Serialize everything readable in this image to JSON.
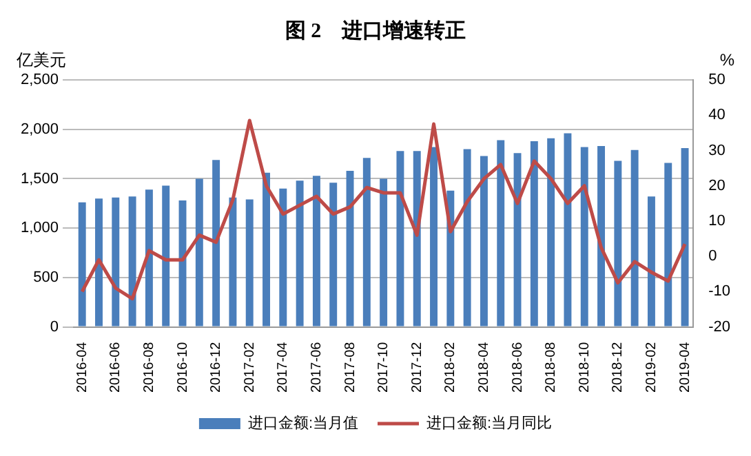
{
  "chart_data": {
    "type": "bar",
    "title": "图 2　进口增速转正",
    "ylabel": "亿美元",
    "y2label": "%",
    "categories": [
      "2016-04",
      null,
      "2016-06",
      null,
      "2016-08",
      null,
      "2016-10",
      null,
      "2016-12",
      null,
      "2017-02",
      null,
      "2017-04",
      null,
      "2017-06",
      null,
      "2017-08",
      null,
      "2017-10",
      null,
      "2017-12",
      null,
      "2018-02",
      null,
      "2018-04",
      null,
      "2018-06",
      null,
      "2018-08",
      null,
      "2018-10",
      null,
      "2018-12",
      null,
      "2019-02",
      null,
      "2019-04"
    ],
    "series": [
      {
        "name": "进口金额:当月值",
        "color": "#4a7ebb",
        "values": [
          1260,
          1300,
          1310,
          1320,
          1390,
          1430,
          1280,
          1500,
          1690,
          1310,
          1290,
          1560,
          1400,
          1480,
          1530,
          1460,
          1580,
          1710,
          1500,
          1780,
          1780,
          1820,
          1380,
          1800,
          1730,
          1890,
          1760,
          1880,
          1910,
          1960,
          1820,
          1830,
          1680,
          1790,
          1320,
          1660,
          1810
        ]
      },
      {
        "name": "进口金额:当月同比",
        "type": "line",
        "axis": "y2",
        "color": "#be4b48",
        "values": [
          -10,
          -1,
          -9,
          -12,
          1.6,
          -1,
          -1,
          6,
          4,
          16,
          38.5,
          20,
          12,
          14.5,
          17,
          12,
          14,
          19.5,
          18,
          18,
          6,
          37.5,
          7,
          15.5,
          22,
          26,
          15,
          27,
          22,
          15,
          20,
          2.5,
          -7.5,
          -1.5,
          -4.5,
          -7,
          3.5
        ]
      }
    ],
    "ylim": [
      0,
      2500
    ],
    "yticks": [
      0,
      500,
      {
        "value": 1000,
        "label": "1,000"
      },
      {
        "value": 1500,
        "label": "1,500"
      },
      {
        "value": 2000,
        "label": "2,000"
      },
      {
        "value": 2500,
        "label": "2,500"
      }
    ],
    "y2lim": [
      -20,
      50
    ],
    "y2ticks": [
      -20,
      -10,
      0,
      10,
      20,
      30,
      40,
      50
    ],
    "grid": "y",
    "legend": "bottom",
    "marker": "none",
    "line_style": "solid"
  }
}
